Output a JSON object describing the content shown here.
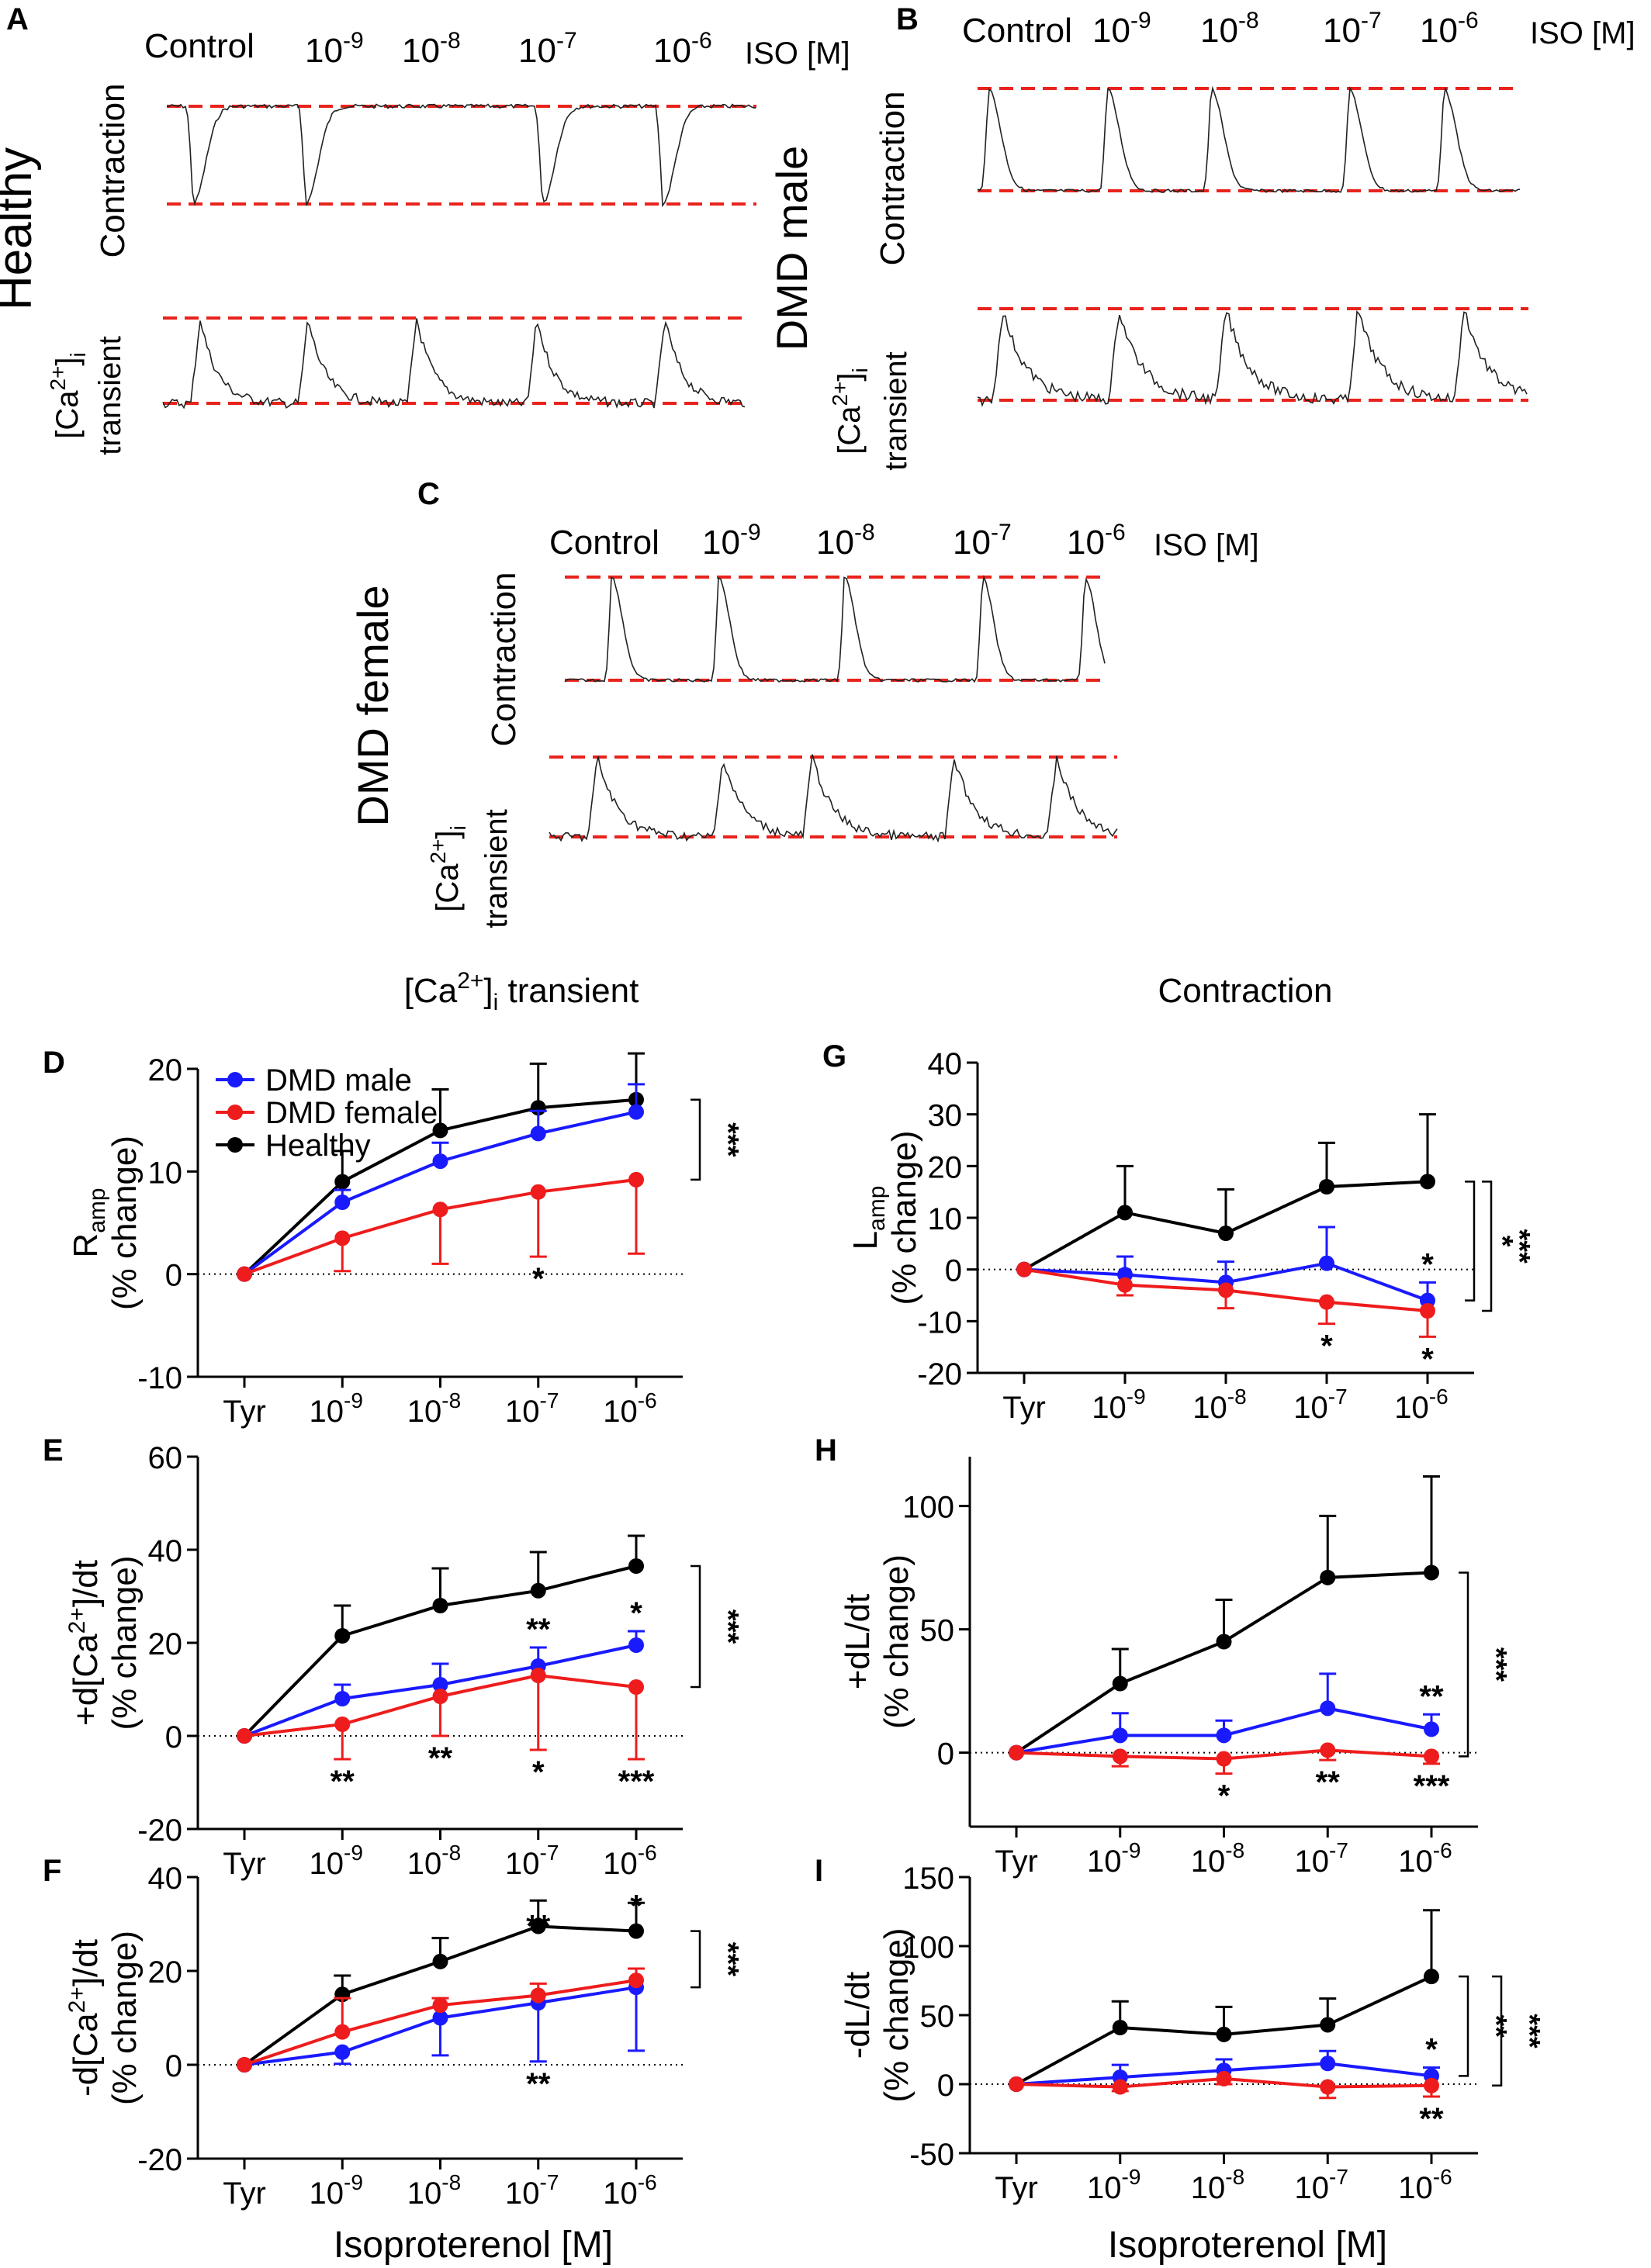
{
  "panels": {
    "A": {
      "letter": "A",
      "group": "Healthy",
      "row1": "Contraction",
      "row2a": "[Ca",
      "row2b": "2+",
      "row2c": "]",
      "row2d": "i",
      "row2e": "transient",
      "conc": [
        "Control",
        "10",
        "10",
        "10",
        "10"
      ],
      "exps": [
        "",
        "-9",
        "-8",
        "-7",
        "-6"
      ],
      "unit": "ISO [M]"
    },
    "B": {
      "letter": "B",
      "group": "DMD male",
      "row1": "Contraction",
      "row2a": "[Ca",
      "row2b": "2+",
      "row2c": "]",
      "row2d": "i",
      "row2e": "transient",
      "conc": [
        "Control",
        "10",
        "10",
        "10",
        "10"
      ],
      "exps": [
        "",
        "-9",
        "-8",
        "-7",
        "-6"
      ],
      "unit": "ISO [M]"
    },
    "C": {
      "letter": "C",
      "group": "DMD female",
      "row1": "Contraction",
      "row2a": "[Ca",
      "row2b": "2+",
      "row2c": "]",
      "row2d": "i",
      "row2e": "transient",
      "conc": [
        "Control",
        "10",
        "10",
        "10",
        "10"
      ],
      "exps": [
        "",
        "-9",
        "-8",
        "-7",
        "-6"
      ],
      "unit": "ISO [M]"
    }
  },
  "column_titles": {
    "left_a": "[Ca",
    "left_b": "2+",
    "left_c": "]",
    "left_d": "i",
    "left_e": " transient",
    "right": "Contraction"
  },
  "xaxis": {
    "ticks": [
      "Tyr",
      "10",
      "10",
      "10",
      "10"
    ],
    "tick_exps": [
      "",
      "-9",
      "-8",
      "-7",
      "-6"
    ],
    "title": "Isoproterenol [M]"
  },
  "legend": [
    "DMD male",
    "DMD female",
    "Healthy"
  ],
  "colors": {
    "DMD male": "#1a1aff",
    "DMD female": "#ee1c1c",
    "Healthy": "#000000",
    "dashed": "#e8231c"
  },
  "chart_data": [
    {
      "id": "D",
      "type": "line",
      "ylabel_main": "R",
      "ylabel_sub": "amp",
      "ylabel2": "(% change)",
      "ylim": [
        -10,
        20
      ],
      "yticks": [
        -10,
        0,
        10,
        20
      ],
      "x": [
        "Tyr",
        "10^-9",
        "10^-8",
        "10^-7",
        "10^-6"
      ],
      "series": [
        {
          "name": "Healthy",
          "values": [
            0,
            9,
            14,
            16.2,
            17
          ],
          "err": [
            0,
            3,
            4,
            4.3,
            4.5
          ],
          "errdir": "up"
        },
        {
          "name": "DMD male",
          "values": [
            0,
            7,
            11,
            13.7,
            15.8
          ],
          "err": [
            0,
            1.2,
            1.8,
            2.2,
            2.7
          ],
          "errdir": "up"
        },
        {
          "name": "DMD female",
          "values": [
            0,
            3.5,
            6.3,
            8,
            9.2
          ],
          "err": [
            0,
            3.2,
            5.3,
            6.3,
            7.2
          ],
          "errdir": "down"
        }
      ],
      "stars": [
        {
          "text": "*",
          "x": 3,
          "pos": "below"
        }
      ],
      "brackets": [
        {
          "text": "***"
        }
      ]
    },
    {
      "id": "E",
      "type": "line",
      "ylabel_main": "+d[Ca",
      "ylabel_sup": "2+",
      "ylabel_tail": "]/dt",
      "ylabel2": "(% change)",
      "ylim": [
        -20,
        60
      ],
      "yticks": [
        -20,
        0,
        20,
        40,
        60
      ],
      "x": [
        "Tyr",
        "10^-9",
        "10^-8",
        "10^-7",
        "10^-6"
      ],
      "series": [
        {
          "name": "Healthy",
          "values": [
            0,
            21.5,
            28,
            31.2,
            36.5
          ],
          "err": [
            0,
            6.5,
            8,
            8.3,
            6.5
          ],
          "errdir": "up"
        },
        {
          "name": "DMD male",
          "values": [
            0,
            8,
            11,
            15,
            19.5
          ],
          "err": [
            0,
            3,
            4.5,
            4,
            3
          ],
          "errdir": "up"
        },
        {
          "name": "DMD female",
          "values": [
            0,
            2.5,
            8.5,
            13,
            10.5
          ],
          "err": [
            0,
            7.5,
            8.5,
            16,
            15.5
          ],
          "errdir": "down"
        }
      ],
      "stars": [
        {
          "text": "**",
          "x": 1,
          "pos": "below"
        },
        {
          "text": "**",
          "x": 2,
          "pos": "below"
        },
        {
          "text": "*",
          "x": 3,
          "pos": "below"
        },
        {
          "text": "***",
          "x": 4,
          "pos": "below"
        },
        {
          "text": "**",
          "x": 3,
          "pos": "above"
        },
        {
          "text": "*",
          "x": 4,
          "pos": "above"
        }
      ],
      "brackets": [
        {
          "text": "***"
        }
      ]
    },
    {
      "id": "F",
      "type": "line",
      "ylabel_main": "-d[Ca",
      "ylabel_sup": "2+",
      "ylabel_tail": "]/dt",
      "ylabel2": "(% change)",
      "ylim": [
        -20,
        40
      ],
      "yticks": [
        -20,
        0,
        20,
        40
      ],
      "x": [
        "Tyr",
        "10^-9",
        "10^-8",
        "10^-7",
        "10^-6"
      ],
      "series": [
        {
          "name": "Healthy",
          "values": [
            0,
            15,
            22,
            29.5,
            28.5
          ],
          "err": [
            0,
            4,
            5,
            5.5,
            6
          ],
          "errdir": "up"
        },
        {
          "name": "DMD male",
          "values": [
            0,
            2.7,
            10,
            13.2,
            16.5
          ],
          "err": [
            0,
            2.5,
            8,
            12.5,
            13.5
          ],
          "errdir": "down"
        },
        {
          "name": "DMD female",
          "values": [
            0,
            7,
            12.7,
            14.8,
            18
          ],
          "err": [
            0,
            7.2,
            1.5,
            2.5,
            2.5
          ],
          "errdir": "up"
        }
      ],
      "stars": [
        {
          "text": "**",
          "x": 3,
          "pos": "above"
        },
        {
          "text": "*",
          "x": 4,
          "pos": "above"
        },
        {
          "text": "**",
          "x": 3,
          "pos": "below"
        }
      ],
      "brackets": [
        {
          "text": "***"
        }
      ]
    },
    {
      "id": "G",
      "type": "line",
      "ylabel_main": "L",
      "ylabel_sub": "amp",
      "ylabel2": "(% change)",
      "ylim": [
        -20,
        40
      ],
      "yticks": [
        -20,
        -10,
        0,
        10,
        20,
        30,
        40
      ],
      "x": [
        "Tyr",
        "10^-9",
        "10^-8",
        "10^-7",
        "10^-6"
      ],
      "series": [
        {
          "name": "Healthy",
          "values": [
            0,
            11,
            7,
            16,
            17
          ],
          "err": [
            0,
            9,
            8.5,
            8.5,
            13
          ],
          "errdir": "up"
        },
        {
          "name": "DMD male",
          "values": [
            0,
            -1,
            -2.5,
            1.2,
            -6
          ],
          "err": [
            0,
            3.5,
            4,
            7,
            3.5
          ],
          "errdir": "up"
        },
        {
          "name": "DMD female",
          "values": [
            0,
            -3,
            -4,
            -6.3,
            -8
          ],
          "err": [
            0,
            2,
            3.5,
            4.2,
            5
          ],
          "errdir": "down"
        }
      ],
      "stars": [
        {
          "text": "*",
          "x": 3,
          "pos": "below"
        },
        {
          "text": "*",
          "x": 4,
          "pos": "below"
        },
        {
          "text": "*",
          "x": 4,
          "pos": "above"
        }
      ],
      "brackets": [
        {
          "text": "*"
        },
        {
          "text": "***"
        }
      ]
    },
    {
      "id": "H",
      "type": "line",
      "ylabel_main": "+dL/dt",
      "ylabel2": "(% change)",
      "ylim": [
        -30,
        120
      ],
      "yticks": [
        0,
        50,
        100
      ],
      "x": [
        "Tyr",
        "10^-9",
        "10^-8",
        "10^-7",
        "10^-6"
      ],
      "series": [
        {
          "name": "Healthy",
          "values": [
            0,
            28,
            45,
            71,
            73
          ],
          "err": [
            0,
            14,
            17,
            25,
            39
          ],
          "errdir": "up"
        },
        {
          "name": "DMD male",
          "values": [
            0,
            7,
            7,
            18,
            9.5
          ],
          "err": [
            0,
            9,
            6,
            14,
            6
          ],
          "errdir": "up"
        },
        {
          "name": "DMD female",
          "values": [
            0,
            -1.5,
            -2.5,
            1,
            -1.5
          ],
          "err": [
            0,
            4,
            6,
            4,
            3
          ],
          "errdir": "down"
        }
      ],
      "stars": [
        {
          "text": "*",
          "x": 2,
          "pos": "below"
        },
        {
          "text": "**",
          "x": 3,
          "pos": "below"
        },
        {
          "text": "***",
          "x": 4,
          "pos": "below"
        },
        {
          "text": "**",
          "x": 4,
          "pos": "above"
        }
      ],
      "brackets": [
        {
          "text": "***"
        }
      ]
    },
    {
      "id": "I",
      "type": "line",
      "ylabel_main": "-dL/dt",
      "ylabel2": "(% change)",
      "ylim": [
        -50,
        150
      ],
      "yticks": [
        -50,
        0,
        50,
        100,
        150
      ],
      "x": [
        "Tyr",
        "10^-9",
        "10^-8",
        "10^-7",
        "10^-6"
      ],
      "series": [
        {
          "name": "Healthy",
          "values": [
            0,
            41,
            36,
            43,
            78
          ],
          "err": [
            0,
            19,
            20,
            19,
            48
          ],
          "errdir": "up"
        },
        {
          "name": "DMD male",
          "values": [
            0,
            5,
            10,
            15,
            6
          ],
          "err": [
            0,
            9,
            8,
            9,
            6
          ],
          "errdir": "up"
        },
        {
          "name": "DMD female",
          "values": [
            0,
            -2,
            4,
            -2,
            -1
          ],
          "err": [
            0,
            3,
            4,
            8,
            8
          ],
          "errdir": "down"
        }
      ],
      "stars": [
        {
          "text": "*",
          "x": 4,
          "pos": "above"
        },
        {
          "text": "**",
          "x": 4,
          "pos": "below"
        }
      ],
      "brackets": [
        {
          "text": "**"
        },
        {
          "text": "***"
        }
      ]
    }
  ]
}
